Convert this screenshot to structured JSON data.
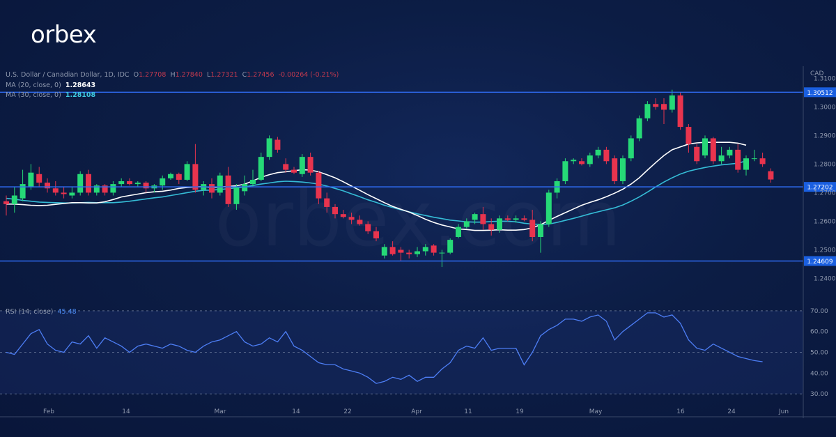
{
  "brand": {
    "logo": "orbex",
    "watermark": "orbex.com"
  },
  "legend": {
    "symbol": "U.S. Dollar / Canadian Dollar, 1D, IDC",
    "ohlc": {
      "o_label": "O",
      "o": "1.27708",
      "h_label": "H",
      "h": "1.27840",
      "l_label": "L",
      "l": "1.27321",
      "c_label": "C",
      "c": "1.27456",
      "change": "-0.00264 (-0.21%)"
    },
    "ma20_label": "MA (20, close, 0)",
    "ma20_value": "1.28643",
    "ma30_label": "MA (30, close, 0)",
    "ma30_value": "1.28108",
    "rsi_label": "RSI (14, close)",
    "rsi_value": "45.48"
  },
  "currency": "CAD",
  "colors": {
    "up": "#26d977",
    "down": "#e8344e",
    "ma20": "#ffffff",
    "ma30": "#35bcd6",
    "rsi": "#4d7ef5",
    "hline": "#2f6bf2",
    "badge": "#1a5fe0"
  },
  "chart_data": [
    {
      "type": "candlestick",
      "title": "U.S. Dollar / Canadian Dollar, 1D, IDC",
      "ylim": [
        1.235,
        1.313
      ],
      "y_ticks": [
        "1.31000",
        "1.30000",
        "1.29000",
        "1.28000",
        "1.27000",
        "1.26000",
        "1.25000",
        "1.24000"
      ],
      "x_ticks": [
        "Feb",
        "14",
        "Mar",
        "14",
        "22",
        "Apr",
        "11",
        "19",
        "May",
        "16",
        "24",
        "Jun"
      ],
      "levels": [
        {
          "label": "1.30512",
          "value": 1.30512
        },
        {
          "label": "1.27202",
          "value": 1.27202
        },
        {
          "label": "1.24609",
          "value": 1.24609
        }
      ],
      "candles": [
        {
          "o": 1.267,
          "h": 1.269,
          "l": 1.262,
          "c": 1.266
        },
        {
          "o": 1.266,
          "h": 1.272,
          "l": 1.263,
          "c": 1.269
        },
        {
          "o": 1.268,
          "h": 1.278,
          "l": 1.267,
          "c": 1.273
        },
        {
          "o": 1.272,
          "h": 1.28,
          "l": 1.271,
          "c": 1.277
        },
        {
          "o": 1.2765,
          "h": 1.279,
          "l": 1.272,
          "c": 1.2735
        },
        {
          "o": 1.2735,
          "h": 1.275,
          "l": 1.27,
          "c": 1.2715
        },
        {
          "o": 1.2715,
          "h": 1.274,
          "l": 1.269,
          "c": 1.27
        },
        {
          "o": 1.27,
          "h": 1.272,
          "l": 1.268,
          "c": 1.2695
        },
        {
          "o": 1.269,
          "h": 1.272,
          "l": 1.268,
          "c": 1.27
        },
        {
          "o": 1.27,
          "h": 1.2775,
          "l": 1.269,
          "c": 1.2765
        },
        {
          "o": 1.2765,
          "h": 1.278,
          "l": 1.269,
          "c": 1.27
        },
        {
          "o": 1.27,
          "h": 1.273,
          "l": 1.269,
          "c": 1.2725
        },
        {
          "o": 1.2725,
          "h": 1.273,
          "l": 1.269,
          "c": 1.27
        },
        {
          "o": 1.27,
          "h": 1.274,
          "l": 1.269,
          "c": 1.273
        },
        {
          "o": 1.273,
          "h": 1.275,
          "l": 1.272,
          "c": 1.274
        },
        {
          "o": 1.274,
          "h": 1.275,
          "l": 1.2725,
          "c": 1.273
        },
        {
          "o": 1.273,
          "h": 1.274,
          "l": 1.272,
          "c": 1.2735
        },
        {
          "o": 1.2735,
          "h": 1.274,
          "l": 1.27,
          "c": 1.2715
        },
        {
          "o": 1.2715,
          "h": 1.273,
          "l": 1.27,
          "c": 1.2725
        },
        {
          "o": 1.2725,
          "h": 1.276,
          "l": 1.271,
          "c": 1.275
        },
        {
          "o": 1.275,
          "h": 1.277,
          "l": 1.2745,
          "c": 1.2765
        },
        {
          "o": 1.2765,
          "h": 1.277,
          "l": 1.273,
          "c": 1.2745
        },
        {
          "o": 1.2745,
          "h": 1.281,
          "l": 1.274,
          "c": 1.28
        },
        {
          "o": 1.28,
          "h": 1.287,
          "l": 1.27,
          "c": 1.271
        },
        {
          "o": 1.271,
          "h": 1.274,
          "l": 1.269,
          "c": 1.273
        },
        {
          "o": 1.273,
          "h": 1.275,
          "l": 1.268,
          "c": 1.27
        },
        {
          "o": 1.27,
          "h": 1.277,
          "l": 1.269,
          "c": 1.276
        },
        {
          "o": 1.276,
          "h": 1.279,
          "l": 1.265,
          "c": 1.266
        },
        {
          "o": 1.266,
          "h": 1.273,
          "l": 1.264,
          "c": 1.272
        },
        {
          "o": 1.2705,
          "h": 1.276,
          "l": 1.269,
          "c": 1.273
        },
        {
          "o": 1.273,
          "h": 1.278,
          "l": 1.272,
          "c": 1.2745
        },
        {
          "o": 1.2745,
          "h": 1.284,
          "l": 1.274,
          "c": 1.2825
        },
        {
          "o": 1.2825,
          "h": 1.29,
          "l": 1.2815,
          "c": 1.289
        },
        {
          "o": 1.2885,
          "h": 1.2895,
          "l": 1.284,
          "c": 1.285
        },
        {
          "o": 1.28,
          "h": 1.282,
          "l": 1.277,
          "c": 1.278
        },
        {
          "o": 1.278,
          "h": 1.279,
          "l": 1.2765,
          "c": 1.277
        },
        {
          "o": 1.2765,
          "h": 1.2835,
          "l": 1.2755,
          "c": 1.2825
        },
        {
          "o": 1.2825,
          "h": 1.284,
          "l": 1.276,
          "c": 1.277
        },
        {
          "o": 1.277,
          "h": 1.2775,
          "l": 1.266,
          "c": 1.268
        },
        {
          "o": 1.268,
          "h": 1.27,
          "l": 1.263,
          "c": 1.265
        },
        {
          "o": 1.265,
          "h": 1.266,
          "l": 1.261,
          "c": 1.2625
        },
        {
          "o": 1.2625,
          "h": 1.264,
          "l": 1.261,
          "c": 1.2615
        },
        {
          "o": 1.2615,
          "h": 1.263,
          "l": 1.259,
          "c": 1.2605
        },
        {
          "o": 1.2605,
          "h": 1.262,
          "l": 1.2585,
          "c": 1.259
        },
        {
          "o": 1.259,
          "h": 1.26,
          "l": 1.2555,
          "c": 1.2565
        },
        {
          "o": 1.2565,
          "h": 1.258,
          "l": 1.253,
          "c": 1.254
        },
        {
          "o": 1.248,
          "h": 1.252,
          "l": 1.247,
          "c": 1.251
        },
        {
          "o": 1.251,
          "h": 1.253,
          "l": 1.248,
          "c": 1.2485
        },
        {
          "o": 1.25,
          "h": 1.251,
          "l": 1.246,
          "c": 1.249
        },
        {
          "o": 1.249,
          "h": 1.25,
          "l": 1.247,
          "c": 1.2485
        },
        {
          "o": 1.2485,
          "h": 1.251,
          "l": 1.2475,
          "c": 1.2495
        },
        {
          "o": 1.2495,
          "h": 1.252,
          "l": 1.248,
          "c": 1.251
        },
        {
          "o": 1.2515,
          "h": 1.252,
          "l": 1.248,
          "c": 1.249
        },
        {
          "o": 1.249,
          "h": 1.25,
          "l": 1.244,
          "c": 1.249
        },
        {
          "o": 1.249,
          "h": 1.254,
          "l": 1.2485,
          "c": 1.2535
        },
        {
          "o": 1.2545,
          "h": 1.259,
          "l": 1.254,
          "c": 1.258
        },
        {
          "o": 1.258,
          "h": 1.261,
          "l": 1.2575,
          "c": 1.26
        },
        {
          "o": 1.2605,
          "h": 1.263,
          "l": 1.259,
          "c": 1.2625
        },
        {
          "o": 1.2625,
          "h": 1.265,
          "l": 1.257,
          "c": 1.259
        },
        {
          "o": 1.259,
          "h": 1.261,
          "l": 1.255,
          "c": 1.257
        },
        {
          "o": 1.257,
          "h": 1.262,
          "l": 1.256,
          "c": 1.261
        },
        {
          "o": 1.261,
          "h": 1.262,
          "l": 1.26,
          "c": 1.2605
        },
        {
          "o": 1.2605,
          "h": 1.262,
          "l": 1.2595,
          "c": 1.261
        },
        {
          "o": 1.261,
          "h": 1.262,
          "l": 1.26,
          "c": 1.2605
        },
        {
          "o": 1.2605,
          "h": 1.264,
          "l": 1.253,
          "c": 1.2545
        },
        {
          "o": 1.2545,
          "h": 1.26,
          "l": 1.249,
          "c": 1.259
        },
        {
          "o": 1.259,
          "h": 1.271,
          "l": 1.258,
          "c": 1.27
        },
        {
          "o": 1.27,
          "h": 1.275,
          "l": 1.268,
          "c": 1.274
        },
        {
          "o": 1.274,
          "h": 1.282,
          "l": 1.273,
          "c": 1.281
        },
        {
          "o": 1.281,
          "h": 1.282,
          "l": 1.28,
          "c": 1.2815
        },
        {
          "o": 1.281,
          "h": 1.282,
          "l": 1.2795,
          "c": 1.28
        },
        {
          "o": 1.28,
          "h": 1.284,
          "l": 1.279,
          "c": 1.283
        },
        {
          "o": 1.283,
          "h": 1.286,
          "l": 1.282,
          "c": 1.285
        },
        {
          "o": 1.285,
          "h": 1.286,
          "l": 1.28,
          "c": 1.281
        },
        {
          "o": 1.282,
          "h": 1.283,
          "l": 1.273,
          "c": 1.274
        },
        {
          "o": 1.274,
          "h": 1.283,
          "l": 1.273,
          "c": 1.282
        },
        {
          "o": 1.282,
          "h": 1.29,
          "l": 1.281,
          "c": 1.289
        },
        {
          "o": 1.289,
          "h": 1.297,
          "l": 1.288,
          "c": 1.296
        },
        {
          "o": 1.296,
          "h": 1.302,
          "l": 1.295,
          "c": 1.301
        },
        {
          "o": 1.301,
          "h": 1.303,
          "l": 1.299,
          "c": 1.3
        },
        {
          "o": 1.301,
          "h": 1.303,
          "l": 1.294,
          "c": 1.299
        },
        {
          "o": 1.299,
          "h": 1.306,
          "l": 1.298,
          "c": 1.304
        },
        {
          "o": 1.304,
          "h": 1.305,
          "l": 1.292,
          "c": 1.293
        },
        {
          "o": 1.293,
          "h": 1.294,
          "l": 1.284,
          "c": 1.287
        },
        {
          "o": 1.286,
          "h": 1.287,
          "l": 1.28,
          "c": 1.281
        },
        {
          "o": 1.283,
          "h": 1.29,
          "l": 1.282,
          "c": 1.289
        },
        {
          "o": 1.289,
          "h": 1.2895,
          "l": 1.28,
          "c": 1.281
        },
        {
          "o": 1.281,
          "h": 1.286,
          "l": 1.28,
          "c": 1.283
        },
        {
          "o": 1.283,
          "h": 1.286,
          "l": 1.282,
          "c": 1.285
        },
        {
          "o": 1.285,
          "h": 1.287,
          "l": 1.277,
          "c": 1.278
        },
        {
          "o": 1.278,
          "h": 1.283,
          "l": 1.276,
          "c": 1.282
        },
        {
          "o": 1.282,
          "h": 1.285,
          "l": 1.281,
          "c": 1.282
        },
        {
          "o": 1.282,
          "h": 1.284,
          "l": 1.279,
          "c": 1.28
        },
        {
          "o": 1.2775,
          "h": 1.2785,
          "l": 1.2735,
          "c": 1.2746
        }
      ],
      "ma20": [
        1.266,
        1.266,
        1.2658,
        1.2656,
        1.2655,
        1.2656,
        1.2659,
        1.2662,
        1.2665,
        1.2665,
        1.2664,
        1.2664,
        1.2668,
        1.2676,
        1.2685,
        1.269,
        1.2695,
        1.27,
        1.2703,
        1.2705,
        1.2709,
        1.2715,
        1.2718,
        1.272,
        1.2721,
        1.2718,
        1.2719,
        1.2722,
        1.2724,
        1.273,
        1.2741,
        1.2754,
        1.2763,
        1.277,
        1.2773,
        1.2777,
        1.278,
        1.2779,
        1.2773,
        1.2763,
        1.2752,
        1.2738,
        1.2723,
        1.2708,
        1.2693,
        1.2679,
        1.2665,
        1.2652,
        1.2642,
        1.2632,
        1.262,
        1.2607,
        1.2596,
        1.2587,
        1.258,
        1.2573,
        1.2571,
        1.2568,
        1.2568,
        1.2569,
        1.257,
        1.2569,
        1.2569,
        1.2571,
        1.2577,
        1.2588,
        1.2603,
        1.2617,
        1.263,
        1.2643,
        1.2656,
        1.2666,
        1.2675,
        1.2686,
        1.2698,
        1.2712,
        1.273,
        1.2752,
        1.2779,
        1.2805,
        1.283,
        1.285,
        1.286,
        1.287,
        1.2874,
        1.2876,
        1.2876,
        1.2876,
        1.2876,
        1.2873,
        1.2866
      ],
      "ma30": [
        1.268,
        1.2677,
        1.2673,
        1.267,
        1.2667,
        1.2666,
        1.2665,
        1.2664,
        1.2664,
        1.2665,
        1.2666,
        1.2665,
        1.2665,
        1.2665,
        1.2667,
        1.267,
        1.2674,
        1.2678,
        1.2682,
        1.2685,
        1.269,
        1.2695,
        1.27,
        1.2705,
        1.2708,
        1.2709,
        1.2711,
        1.2714,
        1.2717,
        1.272,
        1.2725,
        1.273,
        1.2734,
        1.2738,
        1.274,
        1.2739,
        1.2737,
        1.2734,
        1.273,
        1.2723,
        1.2715,
        1.2706,
        1.2696,
        1.2686,
        1.2675,
        1.2666,
        1.2656,
        1.2648,
        1.264,
        1.2633,
        1.2626,
        1.262,
        1.2614,
        1.2609,
        1.2604,
        1.2601,
        1.2598,
        1.2597,
        1.2597,
        1.2599,
        1.26,
        1.26,
        1.2598,
        1.2593,
        1.259,
        1.2589,
        1.259,
        1.2596,
        1.2603,
        1.261,
        1.2618,
        1.2626,
        1.2633,
        1.264,
        1.2647,
        1.2657,
        1.267,
        1.2685,
        1.2702,
        1.272,
        1.2737,
        1.2752,
        1.2765,
        1.2775,
        1.2782,
        1.2788,
        1.2793,
        1.2797,
        1.28,
        1.2803,
        1.2811
      ]
    },
    {
      "type": "line",
      "title": "RSI (14, close)",
      "ylim": [
        25,
        72
      ],
      "y_ticks": [
        "70.00",
        "60.00",
        "50.00",
        "40.00",
        "30.00"
      ],
      "series": [
        {
          "name": "RSI (14, close)",
          "values": [
            50,
            49,
            54,
            59,
            61,
            54,
            51,
            50,
            55,
            54,
            58,
            52,
            57,
            55,
            53,
            50,
            53,
            54,
            53,
            52,
            54,
            53,
            51,
            50,
            53,
            55,
            56,
            58,
            60,
            55,
            53,
            54,
            57,
            55,
            60,
            53,
            51,
            48,
            45,
            44,
            44,
            42,
            41,
            40,
            38,
            35,
            36,
            38,
            37,
            39,
            36,
            38,
            38,
            42,
            45,
            51,
            53,
            52,
            57,
            51,
            52,
            52,
            52,
            44,
            50,
            58,
            61,
            63,
            66,
            66,
            65,
            67,
            68,
            65,
            56,
            60,
            63,
            66,
            69,
            69,
            67,
            68,
            64,
            56,
            52,
            51,
            54,
            52,
            50,
            48,
            47,
            46,
            45.48
          ]
        }
      ]
    }
  ]
}
